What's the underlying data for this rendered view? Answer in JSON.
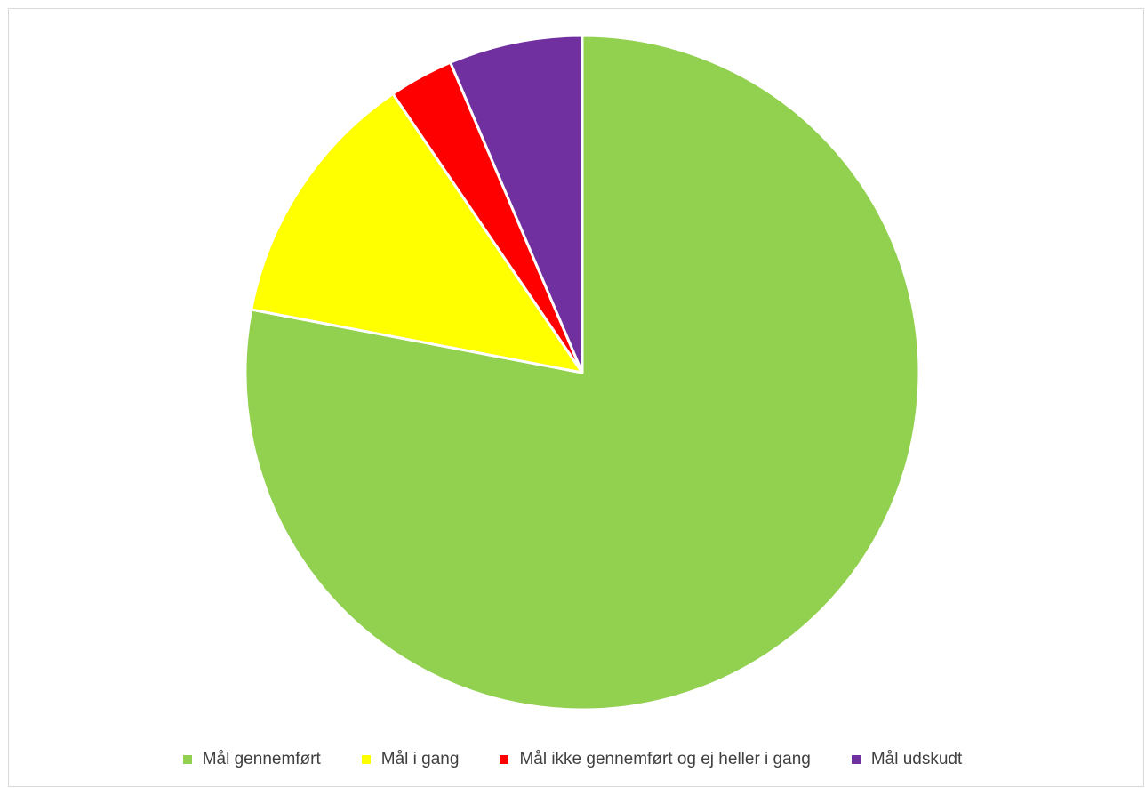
{
  "chart_data": {
    "type": "pie",
    "title": "",
    "start_angle_deg": 0,
    "direction": "clockwise",
    "slices": [
      {
        "label": "Mål gennemført",
        "value": 78.0,
        "color": "#92D050"
      },
      {
        "label": "Mål i gang",
        "value": 12.5,
        "color": "#FFFF00"
      },
      {
        "label": "Mål ikke gennemført og ej heller i gang",
        "value": 3.1,
        "color": "#FF0000"
      },
      {
        "label": "Mål udskudt",
        "value": 6.4,
        "color": "#7030A0"
      }
    ],
    "legend": {
      "position": "bottom",
      "items": [
        {
          "label": "Mål gennemført",
          "color": "#92D050"
        },
        {
          "label": "Mål i gang",
          "color": "#FFFF00"
        },
        {
          "label": "Mål ikke gennemført og ej heller i gang",
          "color": "#FF0000"
        },
        {
          "label": "Mål udskudt",
          "color": "#7030A0"
        }
      ]
    }
  }
}
